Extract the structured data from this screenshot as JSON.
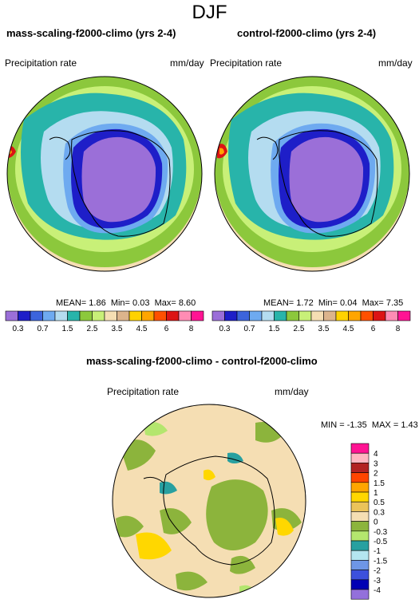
{
  "figure": {
    "title": "DJF"
  },
  "panels": [
    {
      "title": "mass-scaling-f2000-climo (yrs 2-4)",
      "variable_label": "Precipitation rate",
      "units_label": "mm/day",
      "stats": {
        "mean_label": "MEAN=",
        "mean": "1.86",
        "min_label": "Min=",
        "min": "0.03",
        "max_label": "Max=",
        "max": "8.60"
      }
    },
    {
      "title": "control-f2000-climo (yrs 2-4)",
      "variable_label": "Precipitation rate",
      "units_label": "mm/day",
      "stats": {
        "mean_label": "MEAN=",
        "mean": "1.72",
        "min_label": "Min=",
        "min": "0.04",
        "max_label": "Max=",
        "max": "7.35"
      }
    },
    {
      "title": "mass-scaling-f2000-climo - control-f2000-climo",
      "variable_label": "Precipitation rate",
      "units_label": "mm/day",
      "stats": {
        "min_label": "MIN =",
        "min": "-1.35",
        "max_label": "MAX =",
        "max": "1.43"
      }
    }
  ],
  "colorbars": {
    "precip": {
      "colors": [
        "#9b6fd8",
        "#1e1ec8",
        "#3c64dc",
        "#6eaaf0",
        "#b4dcf0",
        "#28b4aa",
        "#8cc83c",
        "#c8f078",
        "#f5deb3",
        "#dcb48c",
        "#ffd200",
        "#ffa500",
        "#ff5000",
        "#dc1414",
        "#ff8cb4",
        "#ff1493"
      ],
      "tick_labels": [
        "0.3",
        "0.7",
        "1.5",
        "2.5",
        "3.5",
        "4.5",
        "6",
        "8"
      ]
    },
    "diff": {
      "colors": [
        "#ff1493",
        "#ffb6c1",
        "#b22222",
        "#ff4500",
        "#ffa500",
        "#ffd700",
        "#ebc35a",
        "#f5deb3",
        "#8cb43c",
        "#b4e66e",
        "#28a0a0",
        "#b4e6f0",
        "#6e96e6",
        "#3c50dc",
        "#0000b4",
        "#9370db"
      ],
      "tick_labels": [
        "4",
        "3",
        "2",
        "1.5",
        "1",
        "0.5",
        "0.3",
        "0",
        "-0.3",
        "-0.5",
        "-1",
        "-1.5",
        "-2",
        "-3",
        "-4"
      ]
    }
  }
}
